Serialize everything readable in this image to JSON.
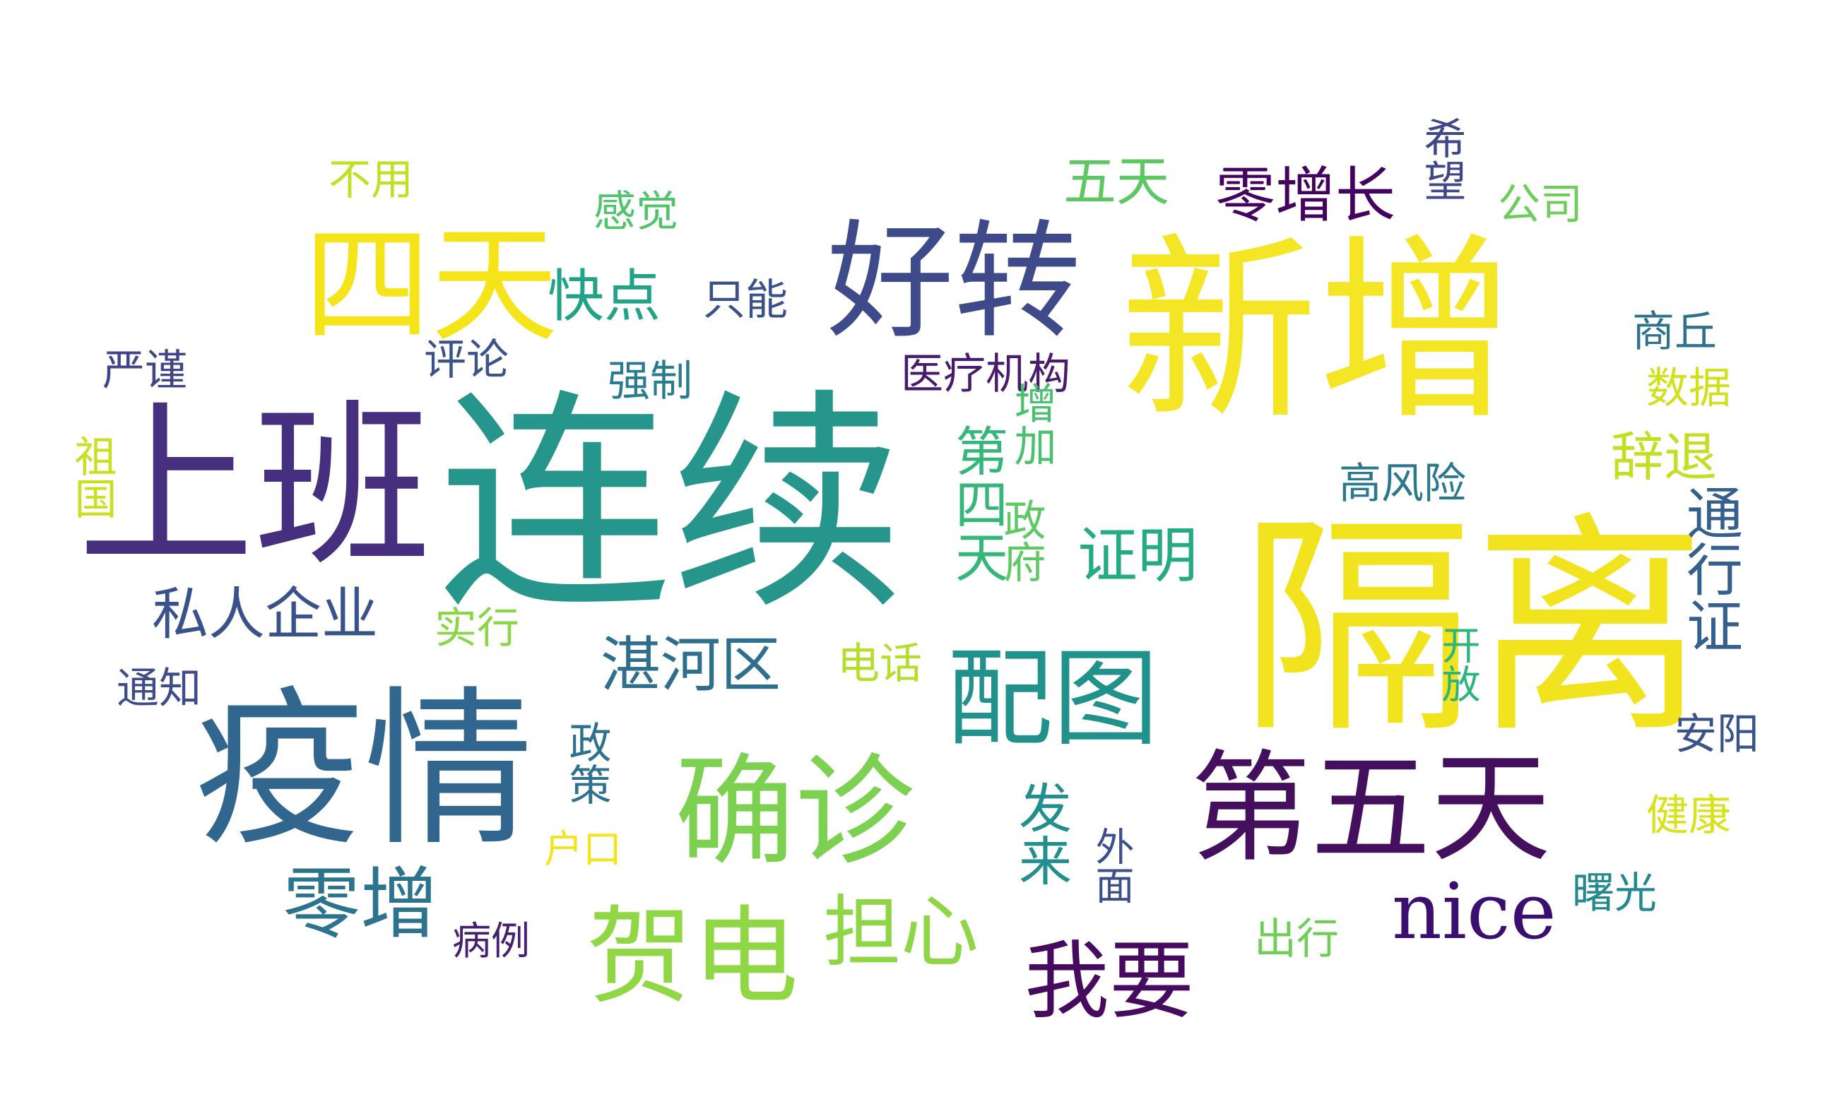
{
  "words": [
    {
      "text": "新增",
      "color": "#f5e625"
    },
    {
      "text": "隔离",
      "color": "#f2e31f"
    },
    {
      "text": "连续",
      "color": "#26958b"
    },
    {
      "text": "上班",
      "color": "#462f7f"
    },
    {
      "text": "疫情",
      "color": "#31668e"
    },
    {
      "text": "好转",
      "color": "#3e4a89"
    },
    {
      "text": "四天",
      "color": "#f6e41a"
    },
    {
      "text": "确诊",
      "color": "#7cd250"
    },
    {
      "text": "第五天",
      "color": "#440f5d"
    },
    {
      "text": "配图",
      "color": "#21918c"
    },
    {
      "text": "贺电",
      "color": "#8fd744"
    },
    {
      "text": "零增",
      "color": "#2c738e"
    },
    {
      "text": "担心",
      "color": "#8ed645"
    },
    {
      "text": "我要",
      "color": "#460b5e"
    },
    {
      "text": "nice",
      "color": "#3b0f6f"
    },
    {
      "text": "湛河区",
      "color": "#2e6f8e"
    },
    {
      "text": "零增长",
      "color": "#44015f"
    },
    {
      "text": "证明",
      "color": "#25ab82"
    },
    {
      "text": "私人企业",
      "color": "#3a528b"
    },
    {
      "text": "快点",
      "color": "#20a386"
    },
    {
      "text": "医疗机构",
      "color": "#481b6d"
    },
    {
      "text": "五天",
      "color": "#5dc863"
    },
    {
      "text": "通行证",
      "color": "#355f8d"
    },
    {
      "text": "第四天",
      "color": "#35b779"
    },
    {
      "text": "增加",
      "color": "#4ac16d"
    },
    {
      "text": "政府",
      "color": "#5ec962"
    },
    {
      "text": "发来",
      "color": "#218f8d"
    },
    {
      "text": "辞退",
      "color": "#c2df23"
    },
    {
      "text": "高风险",
      "color": "#2a788e"
    },
    {
      "text": "数据",
      "color": "#d0e11c"
    },
    {
      "text": "商丘",
      "color": "#2c728e"
    },
    {
      "text": "公司",
      "color": "#6ccd5a"
    },
    {
      "text": "希望",
      "color": "#3f4788"
    },
    {
      "text": "感觉",
      "color": "#50c46a"
    },
    {
      "text": "不用",
      "color": "#c0df25"
    },
    {
      "text": "只能",
      "color": "#3b518b"
    },
    {
      "text": "评论",
      "color": "#3b528b"
    },
    {
      "text": "强制",
      "color": "#297b8e"
    },
    {
      "text": "严谨",
      "color": "#414487"
    },
    {
      "text": "祖国",
      "color": "#c8e020"
    },
    {
      "text": "实行",
      "color": "#8bd646"
    },
    {
      "text": "通知",
      "color": "#3e4c8a"
    },
    {
      "text": "电话",
      "color": "#b5de2b"
    },
    {
      "text": "政策",
      "color": "#2d718e"
    },
    {
      "text": "开放",
      "color": "#2fb47c"
    },
    {
      "text": "安阳",
      "color": "#3a538b"
    },
    {
      "text": "户口",
      "color": "#f1e51d"
    },
    {
      "text": "外面",
      "color": "#3c4f8a"
    },
    {
      "text": "健康",
      "color": "#d8e219"
    },
    {
      "text": "病例",
      "color": "#481f70"
    },
    {
      "text": "出行",
      "color": "#6ece58"
    },
    {
      "text": "曙光",
      "color": "#23898e"
    }
  ]
}
